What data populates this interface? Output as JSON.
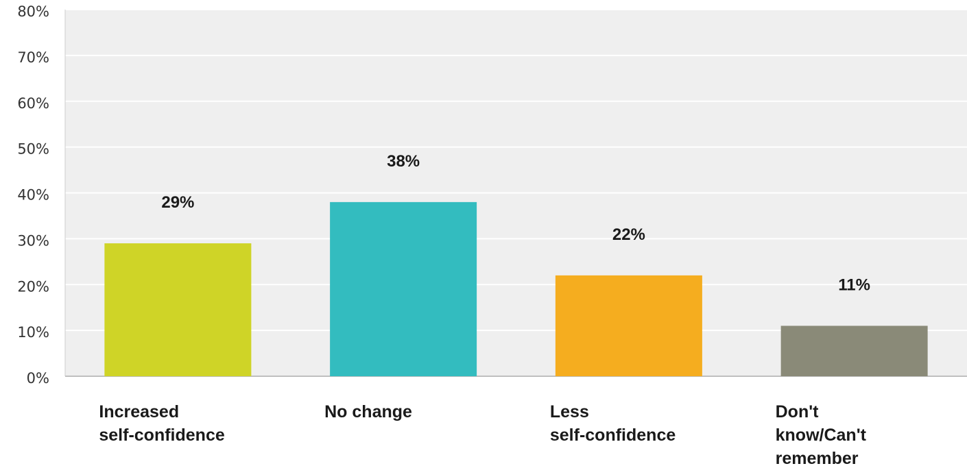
{
  "chart_data": {
    "type": "bar",
    "categories": [
      [
        "Increased",
        "self-confidence"
      ],
      [
        "No change"
      ],
      [
        "Less",
        "self-confidence"
      ],
      [
        "Don't",
        "know/Can't",
        "remember"
      ]
    ],
    "values": [
      29,
      38,
      22,
      11
    ],
    "value_labels": [
      "29%",
      "38%",
      "22%",
      "11%"
    ],
    "colors": [
      "#cfd427",
      "#33bcbf",
      "#f5ad1f",
      "#8a8a78"
    ],
    "yticks": [
      0,
      10,
      20,
      30,
      40,
      50,
      60,
      70,
      80
    ],
    "ytick_labels": [
      "0%",
      "10%",
      "20%",
      "30%",
      "40%",
      "50%",
      "60%",
      "70%",
      "80%"
    ],
    "ylim": [
      0,
      80
    ],
    "grid": true,
    "legend": "none"
  }
}
